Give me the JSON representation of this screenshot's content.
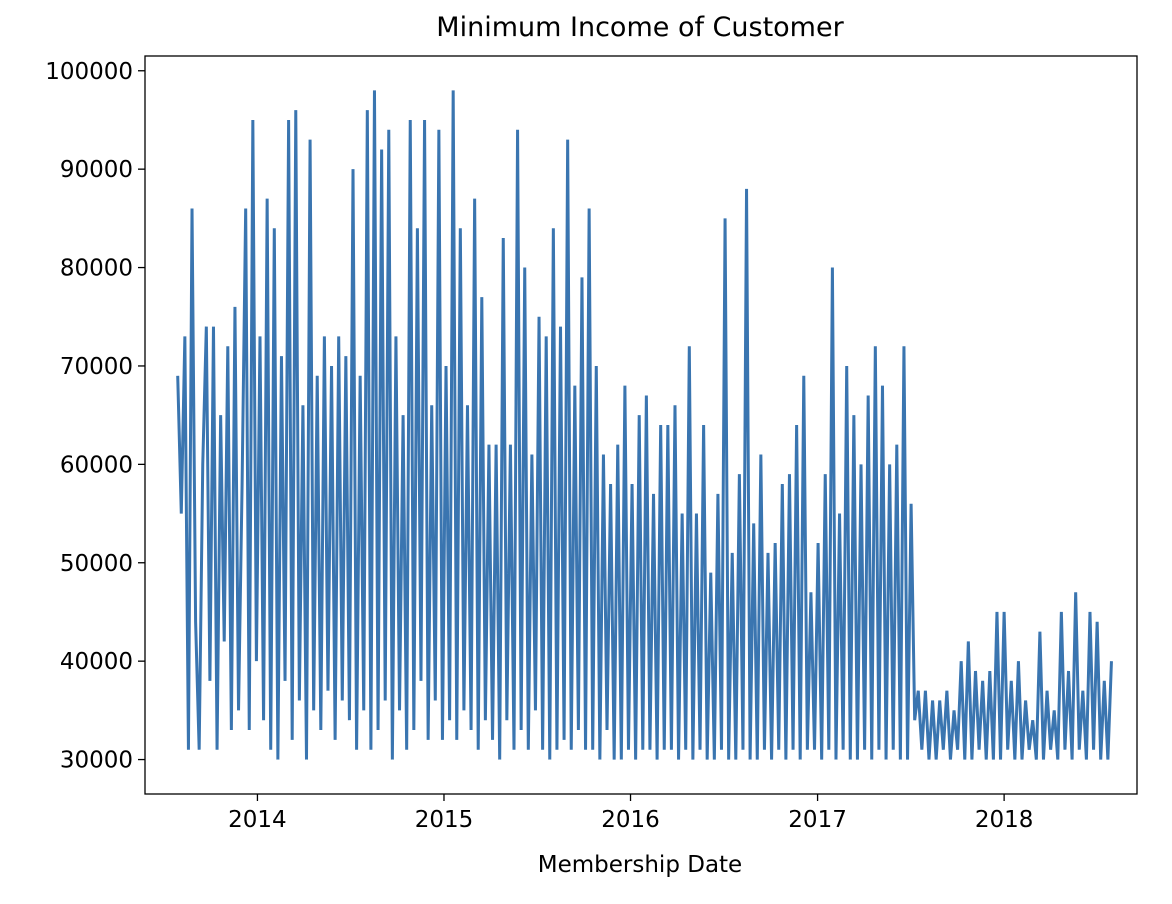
{
  "chart_data": {
    "type": "line",
    "title": "Minimum Income of Customer",
    "xlabel": "Membership Date",
    "ylabel": "",
    "x_ticks": [
      "2014",
      "2015",
      "2016",
      "2017",
      "2018"
    ],
    "y_ticks": [
      "30000",
      "40000",
      "50000",
      "60000",
      "70000",
      "80000",
      "90000",
      "100000"
    ],
    "xlim": [
      "2013-05-26",
      "2018-09-18"
    ],
    "ylim": [
      26500,
      101500
    ],
    "grid": false,
    "legend": "none",
    "series": [
      {
        "color": "#3a75b0",
        "x": [
          "2013-07-29",
          "2013-08-05",
          "2013-08-12",
          "2013-08-19",
          "2013-08-26",
          "2013-09-02",
          "2013-09-09",
          "2013-09-16",
          "2013-09-23",
          "2013-09-30",
          "2013-10-07",
          "2013-10-14",
          "2013-10-21",
          "2013-10-28",
          "2013-11-04",
          "2013-11-11",
          "2013-11-18",
          "2013-11-25",
          "2013-12-02",
          "2013-12-09",
          "2013-12-16",
          "2013-12-23",
          "2013-12-30",
          "2014-01-06",
          "2014-01-13",
          "2014-01-20",
          "2014-01-27",
          "2014-02-03",
          "2014-02-10",
          "2014-02-17",
          "2014-02-24",
          "2014-03-03",
          "2014-03-10",
          "2014-03-17",
          "2014-03-24",
          "2014-03-31",
          "2014-04-07",
          "2014-04-14",
          "2014-04-21",
          "2014-04-28",
          "2014-05-05",
          "2014-05-12",
          "2014-05-19",
          "2014-05-26",
          "2014-06-02",
          "2014-06-09",
          "2014-06-16",
          "2014-06-23",
          "2014-06-30",
          "2014-07-07",
          "2014-07-14",
          "2014-07-21",
          "2014-07-28",
          "2014-08-04",
          "2014-08-11",
          "2014-08-18",
          "2014-08-25",
          "2014-09-01",
          "2014-09-08",
          "2014-09-15",
          "2014-09-22",
          "2014-09-29",
          "2014-10-06",
          "2014-10-13",
          "2014-10-20",
          "2014-10-27",
          "2014-11-03",
          "2014-11-10",
          "2014-11-17",
          "2014-11-24",
          "2014-12-01",
          "2014-12-08",
          "2014-12-15",
          "2014-12-22",
          "2014-12-29",
          "2015-01-05",
          "2015-01-12",
          "2015-01-19",
          "2015-01-26",
          "2015-02-02",
          "2015-02-09",
          "2015-02-16",
          "2015-02-23",
          "2015-03-02",
          "2015-03-09",
          "2015-03-16",
          "2015-03-23",
          "2015-03-30",
          "2015-04-06",
          "2015-04-13",
          "2015-04-20",
          "2015-04-27",
          "2015-05-04",
          "2015-05-11",
          "2015-05-18",
          "2015-05-25",
          "2015-06-01",
          "2015-06-08",
          "2015-06-15",
          "2015-06-22",
          "2015-06-29",
          "2015-07-06",
          "2015-07-13",
          "2015-07-20",
          "2015-07-27",
          "2015-08-03",
          "2015-08-10",
          "2015-08-17",
          "2015-08-24",
          "2015-08-31",
          "2015-09-07",
          "2015-09-14",
          "2015-09-21",
          "2015-09-28",
          "2015-10-05",
          "2015-10-12",
          "2015-10-19",
          "2015-10-26",
          "2015-11-02",
          "2015-11-09",
          "2015-11-16",
          "2015-11-23",
          "2015-11-30",
          "2015-12-07",
          "2015-12-14",
          "2015-12-21",
          "2015-12-28",
          "2016-01-04",
          "2016-01-11",
          "2016-01-18",
          "2016-01-25",
          "2016-02-01",
          "2016-02-08",
          "2016-02-15",
          "2016-02-22",
          "2016-02-29",
          "2016-03-07",
          "2016-03-14",
          "2016-03-21",
          "2016-03-28",
          "2016-04-04",
          "2016-04-11",
          "2016-04-18",
          "2016-04-25",
          "2016-05-02",
          "2016-05-09",
          "2016-05-16",
          "2016-05-23",
          "2016-05-30",
          "2016-06-06",
          "2016-06-13",
          "2016-06-20",
          "2016-06-27",
          "2016-07-04",
          "2016-07-11",
          "2016-07-18",
          "2016-07-25",
          "2016-08-01",
          "2016-08-08",
          "2016-08-15",
          "2016-08-22",
          "2016-08-29",
          "2016-09-05",
          "2016-09-12",
          "2016-09-19",
          "2016-09-26",
          "2016-10-03",
          "2016-10-10",
          "2016-10-17",
          "2016-10-24",
          "2016-10-31",
          "2016-11-07",
          "2016-11-14",
          "2016-11-21",
          "2016-11-28",
          "2016-12-05",
          "2016-12-12",
          "2016-12-19",
          "2016-12-26",
          "2017-01-02",
          "2017-01-09",
          "2017-01-16",
          "2017-01-23",
          "2017-01-30",
          "2017-02-06",
          "2017-02-13",
          "2017-02-20",
          "2017-02-27",
          "2017-03-06",
          "2017-03-13",
          "2017-03-20",
          "2017-03-27",
          "2017-04-03",
          "2017-04-10",
          "2017-04-17",
          "2017-04-24",
          "2017-05-01",
          "2017-05-08",
          "2017-05-15",
          "2017-05-22",
          "2017-05-29",
          "2017-06-05",
          "2017-06-12",
          "2017-06-19",
          "2017-06-26",
          "2017-07-03",
          "2017-07-10",
          "2017-07-17",
          "2017-07-24",
          "2017-07-31",
          "2017-08-07",
          "2017-08-14",
          "2017-08-21",
          "2017-08-28",
          "2017-09-04",
          "2017-09-11",
          "2017-09-18",
          "2017-09-25",
          "2017-10-02",
          "2017-10-09",
          "2017-10-16",
          "2017-10-23",
          "2017-10-30",
          "2017-11-06",
          "2017-11-13",
          "2017-11-20",
          "2017-11-27",
          "2017-12-04",
          "2017-12-11",
          "2017-12-18",
          "2017-12-25",
          "2018-01-01",
          "2018-01-08",
          "2018-01-15",
          "2018-01-22",
          "2018-01-29",
          "2018-02-05",
          "2018-02-12",
          "2018-02-19",
          "2018-02-26",
          "2018-03-05",
          "2018-03-12",
          "2018-03-19",
          "2018-03-26",
          "2018-04-02",
          "2018-04-09",
          "2018-04-16",
          "2018-04-23",
          "2018-04-30",
          "2018-05-07",
          "2018-05-14",
          "2018-05-21",
          "2018-05-28",
          "2018-06-04",
          "2018-06-11",
          "2018-06-18",
          "2018-06-25",
          "2018-07-02",
          "2018-07-09",
          "2018-07-16",
          "2018-07-23",
          "2018-07-30"
        ],
        "y": [
          69000,
          55000,
          73000,
          31000,
          86000,
          44000,
          31000,
          60000,
          74000,
          38000,
          74000,
          31000,
          65000,
          42000,
          72000,
          33000,
          76000,
          35000,
          58000,
          86000,
          33000,
          95000,
          40000,
          73000,
          34000,
          87000,
          31000,
          84000,
          30000,
          71000,
          38000,
          95000,
          32000,
          96000,
          36000,
          66000,
          30000,
          93000,
          35000,
          69000,
          33000,
          73000,
          37000,
          70000,
          32000,
          73000,
          36000,
          71000,
          34000,
          90000,
          31000,
          69000,
          35000,
          96000,
          31000,
          98000,
          33000,
          92000,
          36000,
          94000,
          30000,
          73000,
          35000,
          65000,
          31000,
          95000,
          33000,
          84000,
          38000,
          95000,
          32000,
          66000,
          36000,
          94000,
          32000,
          70000,
          34000,
          98000,
          32000,
          84000,
          35000,
          66000,
          33000,
          87000,
          31000,
          77000,
          34000,
          62000,
          32000,
          62000,
          30000,
          83000,
          34000,
          62000,
          31000,
          94000,
          33000,
          80000,
          31000,
          61000,
          35000,
          75000,
          31000,
          73000,
          30000,
          84000,
          31000,
          74000,
          32000,
          93000,
          31000,
          68000,
          33000,
          79000,
          31000,
          86000,
          31000,
          70000,
          30000,
          61000,
          33000,
          58000,
          30000,
          62000,
          30000,
          68000,
          31000,
          58000,
          30000,
          65000,
          31000,
          67000,
          31000,
          57000,
          30000,
          64000,
          31000,
          64000,
          31000,
          66000,
          30000,
          55000,
          31000,
          72000,
          30000,
          55000,
          31000,
          64000,
          30000,
          49000,
          30000,
          57000,
          31000,
          85000,
          30000,
          51000,
          30000,
          59000,
          31000,
          88000,
          30000,
          54000,
          30000,
          61000,
          31000,
          51000,
          30000,
          52000,
          31000,
          58000,
          30000,
          59000,
          31000,
          64000,
          30000,
          69000,
          31000,
          47000,
          31000,
          52000,
          30000,
          59000,
          31000,
          80000,
          30000,
          55000,
          31000,
          70000,
          30000,
          65000,
          30000,
          60000,
          31000,
          67000,
          30000,
          72000,
          31000,
          68000,
          30000,
          60000,
          31000,
          62000,
          30000,
          72000,
          30000,
          56000,
          34000,
          37000,
          31000,
          37000,
          30000,
          36000,
          30000,
          36000,
          31000,
          37000,
          30000,
          35000,
          31000,
          40000,
          30000,
          42000,
          30000,
          39000,
          31000,
          38000,
          30000,
          39000,
          30000,
          45000,
          30000,
          45000,
          31000,
          38000,
          30000,
          40000,
          30000,
          36000,
          31000,
          34000,
          30000,
          43000,
          30000,
          37000,
          31000,
          35000,
          30000,
          45000,
          31000,
          39000,
          30000,
          47000,
          31000,
          37000,
          30000,
          45000,
          31000,
          44000,
          30000,
          38000,
          30000,
          40000
        ]
      }
    ]
  }
}
